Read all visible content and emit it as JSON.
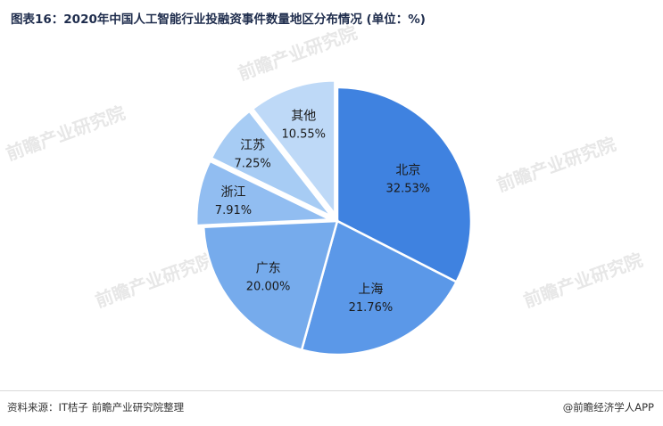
{
  "title": "图表16：2020年中国人工智能行业投融资事件数量地区分布情况 (单位：%)",
  "chart_data": {
    "type": "pie",
    "title": "图表16：2020年中国人工智能行业投融资事件数量地区分布情况 (单位：%)",
    "unit": "%",
    "slices": [
      {
        "label": "北京",
        "value": 32.53,
        "value_label": "32.53%",
        "color": "#3f82e0"
      },
      {
        "label": "上海",
        "value": 21.76,
        "value_label": "21.76%",
        "color": "#5b98e8"
      },
      {
        "label": "广东",
        "value": 20.0,
        "value_label": "20.00%",
        "color": "#76abec"
      },
      {
        "label": "浙江",
        "value": 7.91,
        "value_label": "7.91%",
        "color": "#91bdf1"
      },
      {
        "label": "江苏",
        "value": 7.25,
        "value_label": "7.25%",
        "color": "#a7ccf4"
      },
      {
        "label": "其他",
        "value": 10.55,
        "value_label": "10.55%",
        "color": "#bed9f7"
      }
    ]
  },
  "watermark": "前瞻产业研究院",
  "footer": {
    "source": "资料来源：IT桔子 前瞻产业研究院整理",
    "brand": "@前瞻经济学人APP"
  }
}
